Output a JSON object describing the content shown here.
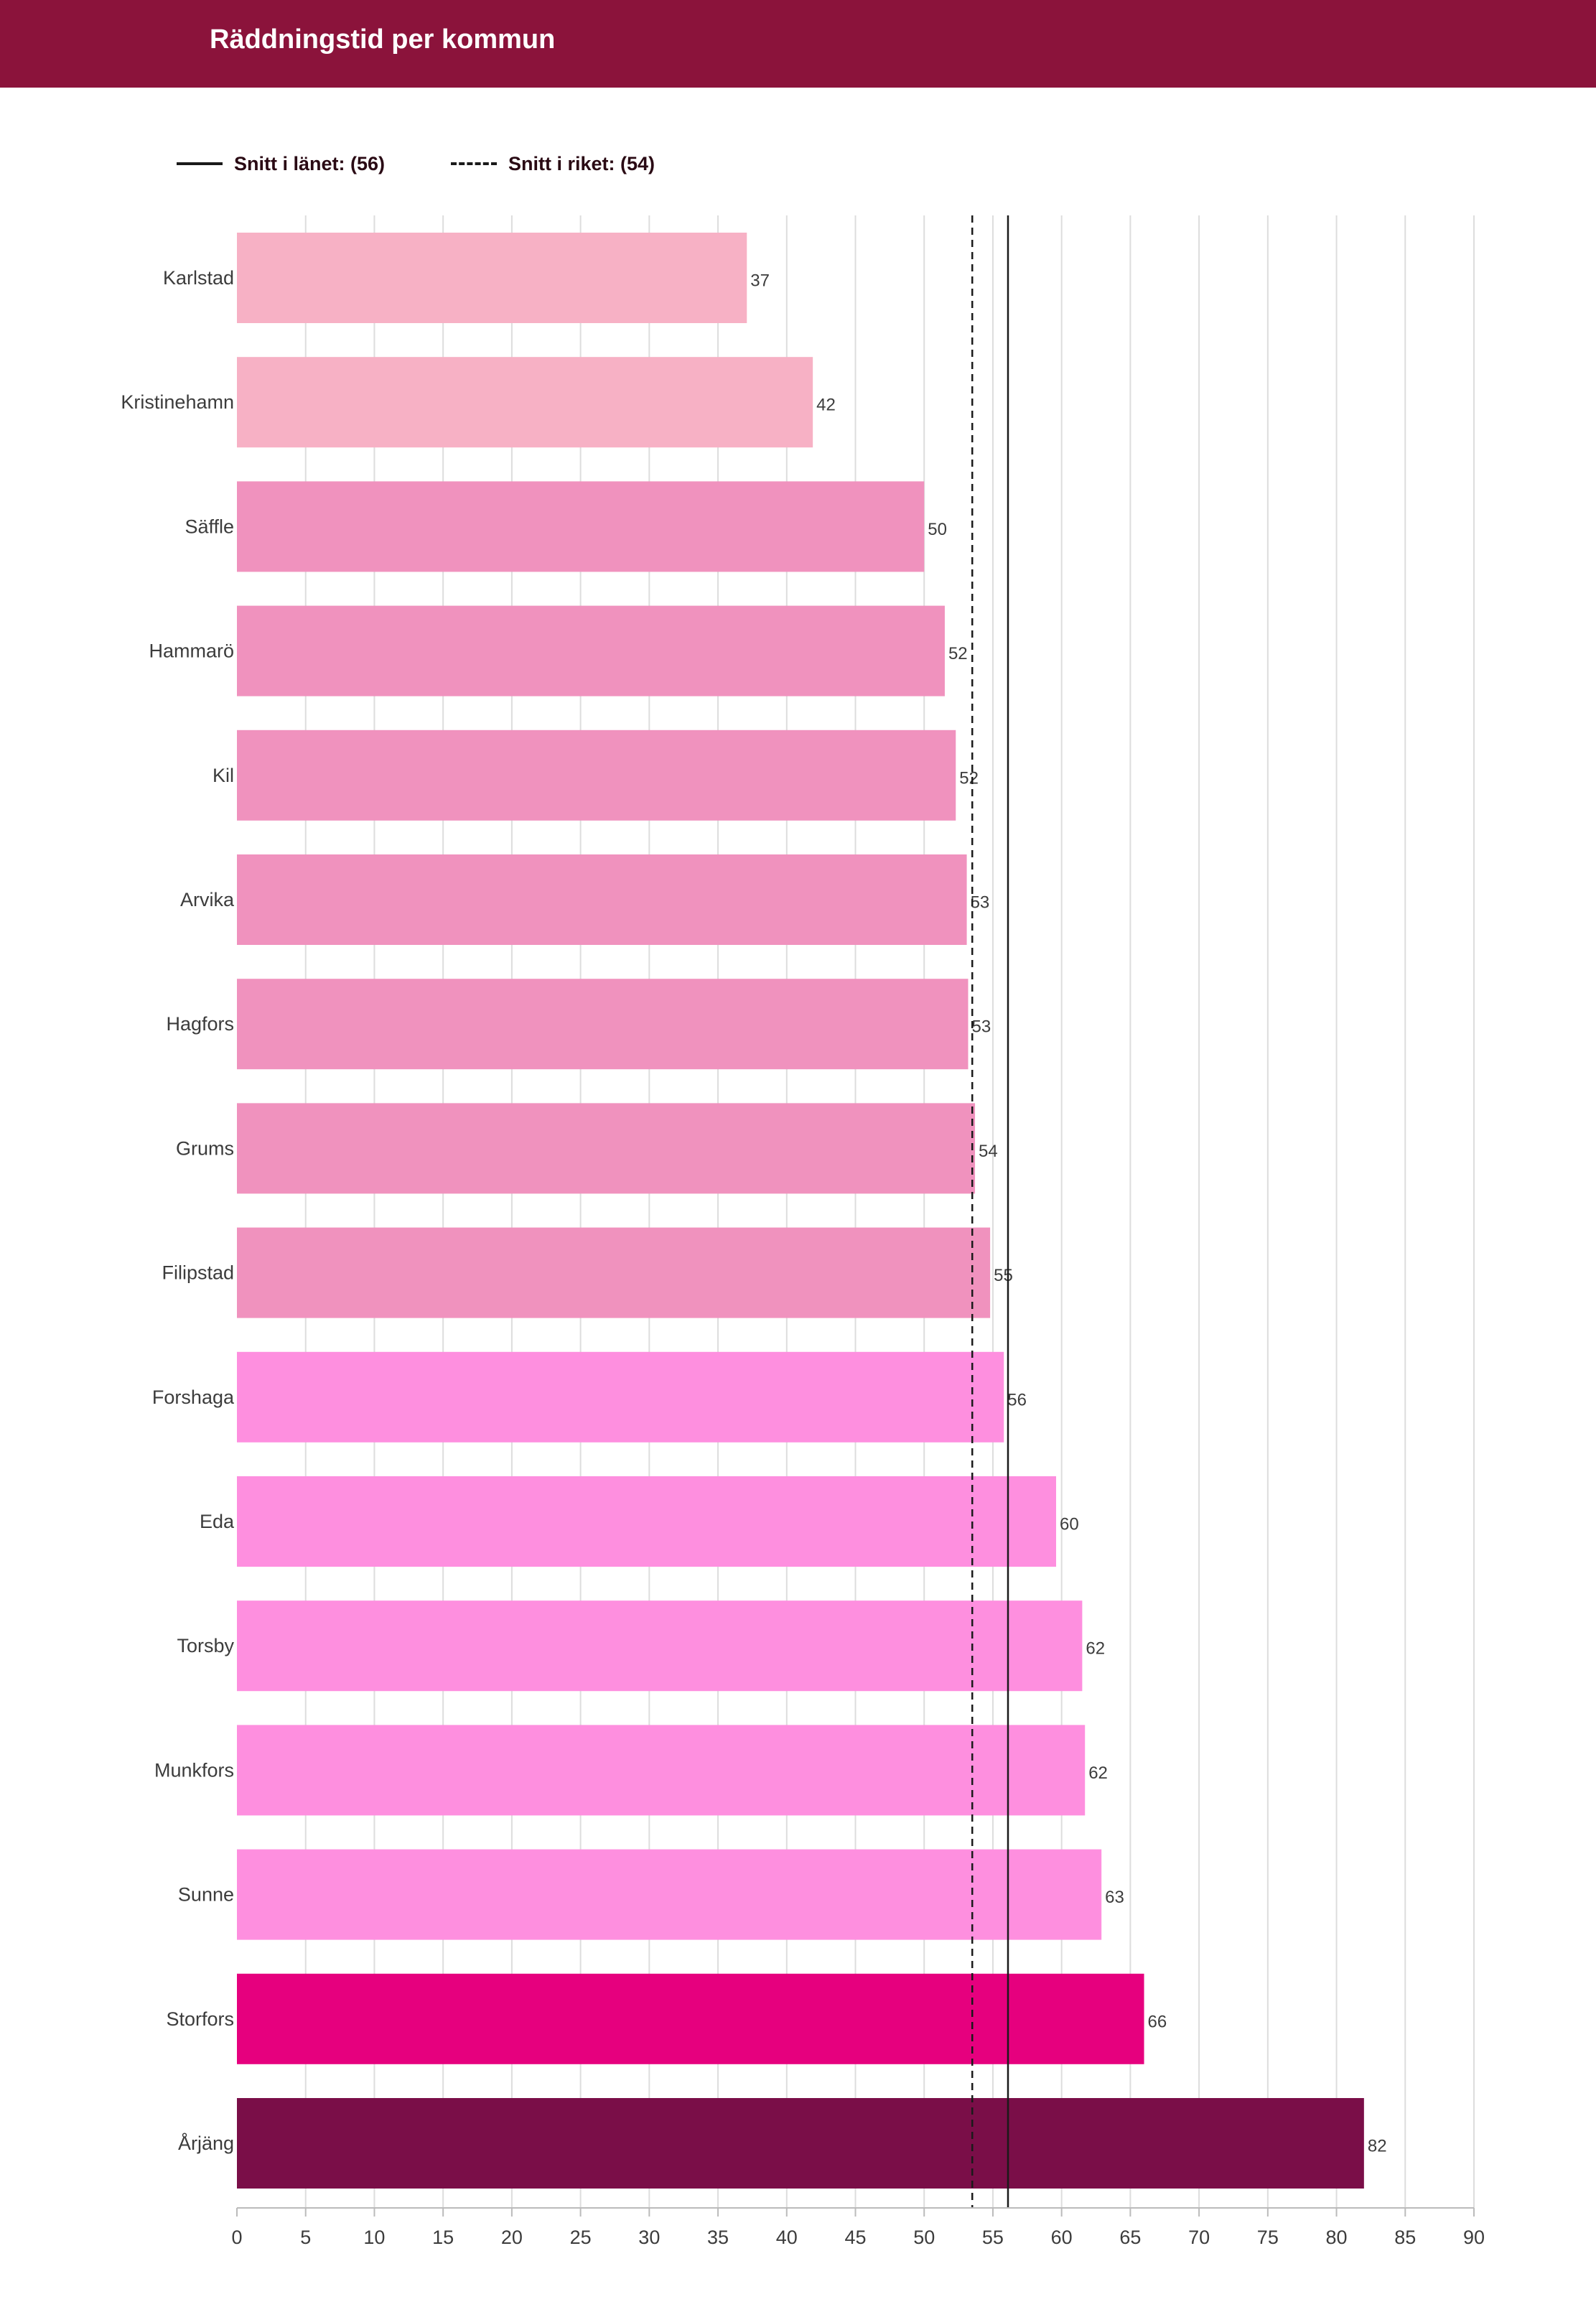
{
  "header": {
    "title": "Räddningstid per kommun"
  },
  "legend": {
    "county_label": "Snitt i länet: (56)",
    "national_label": "Snitt i riket: (54)"
  },
  "colors": {
    "header_bg": "#8b133b",
    "light_pink": "#f7b1c5",
    "mid_pink": "#f092be",
    "bright_pink": "#fe8fdf",
    "magenta": "#e6007e",
    "dark_plum": "#7a0e48",
    "gridline": "#dddddd"
  },
  "chart_data": {
    "type": "bar",
    "orientation": "horizontal",
    "title": "Räddningstid per kommun",
    "xlabel": "",
    "ylabel": "",
    "xlim": [
      0,
      90
    ],
    "x_ticks": [
      0,
      5,
      10,
      15,
      20,
      25,
      30,
      35,
      40,
      45,
      50,
      55,
      60,
      65,
      70,
      75,
      80,
      85,
      90
    ],
    "grid": true,
    "legend_position": "top-left",
    "categories": [
      "Karlstad",
      "Kristinehamn",
      "Säffle",
      "Hammarö",
      "Kil",
      "Arvika",
      "Hagfors",
      "Grums",
      "Filipstad",
      "Forshaga",
      "Eda",
      "Torsby",
      "Munkfors",
      "Sunne",
      "Storfors",
      "Årjäng"
    ],
    "values": [
      37.1,
      41.9,
      50.0,
      51.5,
      52.3,
      53.1,
      53.2,
      53.7,
      54.8,
      55.8,
      59.6,
      61.5,
      61.7,
      62.9,
      66.0,
      82.0
    ],
    "labels": [
      "37",
      "42",
      "50",
      "52",
      "52",
      "53",
      "53",
      "54",
      "55",
      "56",
      "60",
      "62",
      "62",
      "63",
      "66",
      "82"
    ],
    "bar_colors": [
      "#f7b1c5",
      "#f7b1c5",
      "#f092be",
      "#f092be",
      "#f092be",
      "#f092be",
      "#f092be",
      "#f092be",
      "#f092be",
      "#fe8fdf",
      "#fe8fdf",
      "#fe8fdf",
      "#fe8fdf",
      "#fe8fdf",
      "#e6007e",
      "#7a0e48"
    ],
    "reference_lines": [
      {
        "name": "Snitt i länet: (56)",
        "value": 56.1,
        "style": "solid"
      },
      {
        "name": "Snitt i riket: (54)",
        "value": 53.5,
        "style": "dashed"
      }
    ]
  }
}
